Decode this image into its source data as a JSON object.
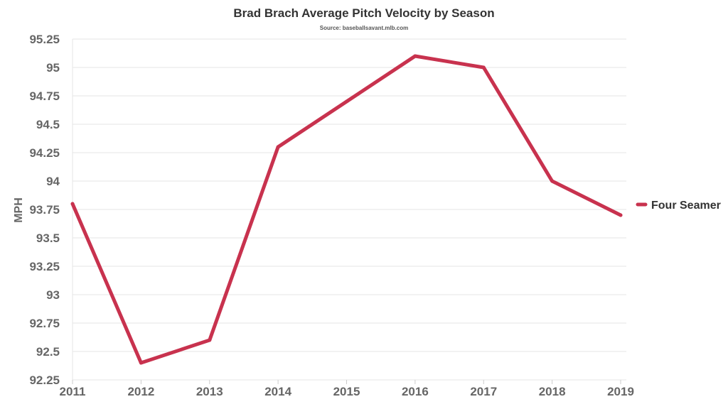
{
  "chart_data": {
    "type": "line",
    "title": "Brad Brach Average Pitch Velocity by Season",
    "subtitle": "Source: baseballsavant.mlb.com",
    "xlabel": "",
    "ylabel": "MPH",
    "x": [
      "2011",
      "2012",
      "2013",
      "2014",
      "2015",
      "2016",
      "2017",
      "2018",
      "2019"
    ],
    "ylim": [
      92.25,
      95.25
    ],
    "yticks": [
      "92.25",
      "92.5",
      "92.75",
      "93",
      "93.25",
      "93.5",
      "93.75",
      "94",
      "94.25",
      "94.5",
      "94.75",
      "95",
      "95.25"
    ],
    "grid": true,
    "legend_position": "right",
    "series": [
      {
        "name": "Four Seamer",
        "color": "#c8324e",
        "values": [
          93.8,
          92.4,
          92.6,
          94.3,
          94.7,
          95.1,
          95.0,
          94.0,
          93.7
        ]
      }
    ]
  }
}
